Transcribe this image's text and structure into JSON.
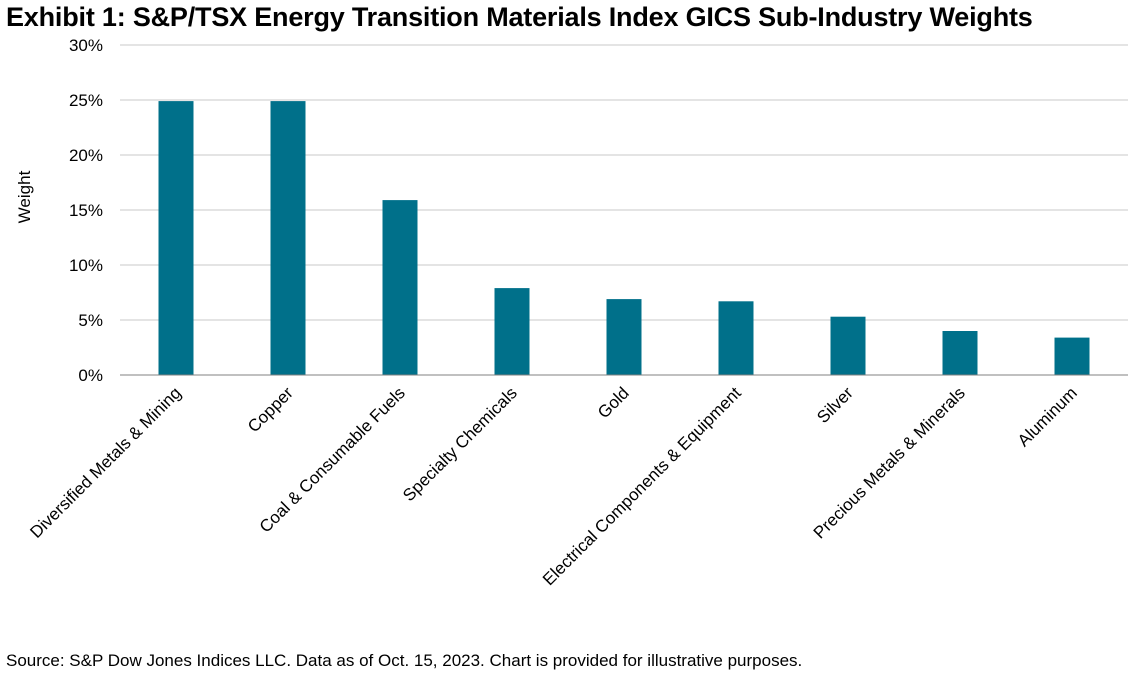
{
  "title": "Exhibit 1: S&P/TSX Energy Transition Materials Index GICS Sub-Industry Weights",
  "source": "Source: S&P Dow Jones Indices LLC. Data as of Oct. 15, 2023. Chart is provided for illustrative purposes.",
  "colors": {
    "bar": "#00708a",
    "grid": "#c8c8c8",
    "axis": "#808080"
  },
  "chart_data": {
    "type": "bar",
    "title": "Exhibit 1: S&P/TSX Energy Transition Materials Index GICS Sub-Industry Weights",
    "xlabel": "",
    "ylabel": "Weight",
    "ylim": [
      0,
      30
    ],
    "yticks": [
      0,
      5,
      10,
      15,
      20,
      25,
      30
    ],
    "ytick_labels": [
      "0%",
      "5%",
      "10%",
      "15%",
      "20%",
      "25%",
      "30%"
    ],
    "grid": true,
    "categories": [
      "Diversified Metals & Mining",
      "Copper",
      "Coal & Consumable Fuels",
      "Specialty Chemicals",
      "Gold",
      "Electrical Components & Equipment",
      "Silver",
      "Precious Metals & Minerals",
      "Aluminum"
    ],
    "values": [
      24.9,
      24.9,
      15.9,
      7.9,
      6.9,
      6.7,
      5.3,
      4.0,
      3.4
    ]
  }
}
